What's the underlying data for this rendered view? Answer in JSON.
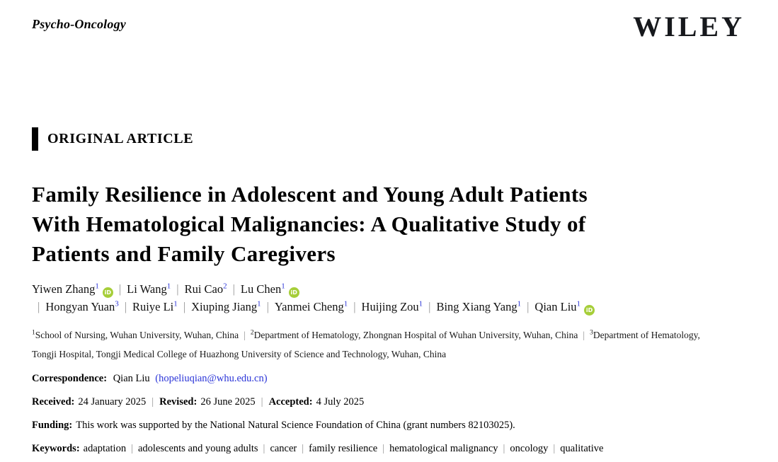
{
  "header": {
    "journal_name": "Psycho-Oncology",
    "publisher": "WILEY"
  },
  "category": {
    "label": "ORIGINAL ARTICLE"
  },
  "title": {
    "full": "Family Resilience in Adolescent and Young Adult Patients With Hematological Malignancies: A Qualitative Study of Patients and Family Caregivers",
    "lines": [
      "Family Resilience in Adolescent and Young Adult Patients",
      "With Hematological Malignancies: A Qualitative Study of",
      "Patients and Family Caregivers"
    ]
  },
  "authors": {
    "separator": "|",
    "orcid_icon_text": "iD",
    "list": [
      {
        "name": "Yiwen Zhang",
        "affiliation_sup": "1",
        "orcid": true
      },
      {
        "name": "Li Wang",
        "affiliation_sup": "1",
        "orcid": false
      },
      {
        "name": "Rui Cao",
        "affiliation_sup": "2",
        "orcid": false
      },
      {
        "name": "Lu Chen",
        "affiliation_sup": "1",
        "orcid": true
      },
      {
        "name": "Hongyan Yuan",
        "affiliation_sup": "3",
        "orcid": false
      },
      {
        "name": "Ruiye Li",
        "affiliation_sup": "1",
        "orcid": false
      },
      {
        "name": "Xiuping Jiang",
        "affiliation_sup": "1",
        "orcid": false
      },
      {
        "name": "Yanmei Cheng",
        "affiliation_sup": "1",
        "orcid": false
      },
      {
        "name": "Huijing Zou",
        "affiliation_sup": "1",
        "orcid": false
      },
      {
        "name": "Bing Xiang Yang",
        "affiliation_sup": "1",
        "orcid": false
      },
      {
        "name": "Qian Liu",
        "affiliation_sup": "1",
        "orcid": true
      }
    ]
  },
  "affiliations": {
    "separator": "|",
    "list": [
      {
        "sup": "1",
        "text": "School of Nursing, Wuhan University, Wuhan, China"
      },
      {
        "sup": "2",
        "text": "Department of Hematology, Zhongnan Hospital of Wuhan University, Wuhan, China"
      },
      {
        "sup": "3",
        "text": "Department of Hematology, Tongji Hospital, Tongji Medical College of Huazhong University of Science and Technology, Wuhan, China"
      }
    ]
  },
  "correspondence": {
    "label": "Correspondence:",
    "name": "Qian Liu",
    "email": "hopeliuqian@whu.edu.cn",
    "email_display": "(hopeliuqian@whu.edu.cn)"
  },
  "history": {
    "separator": "|",
    "items": [
      {
        "label": "Received:",
        "value": "24 January 2025"
      },
      {
        "label": "Revised:",
        "value": "26 June 2025"
      },
      {
        "label": "Accepted:",
        "value": "4 July 2025"
      }
    ]
  },
  "funding": {
    "label": "Funding:",
    "text": "This work was supported by the National Natural Science Foundation of China (grant numbers 82103025)."
  },
  "keywords": {
    "label": "Keywords:",
    "separator": "|",
    "items": [
      "adaptation",
      "adolescents and young adults",
      "cancer",
      "family resilience",
      "hematological malignancy",
      "oncology",
      "qualitative"
    ]
  },
  "colors": {
    "text": "#000000",
    "link_blue": "#2b35d8",
    "orcid_green": "#a6ce39",
    "separator_gray": "#909090",
    "category_bar": "#000000"
  }
}
